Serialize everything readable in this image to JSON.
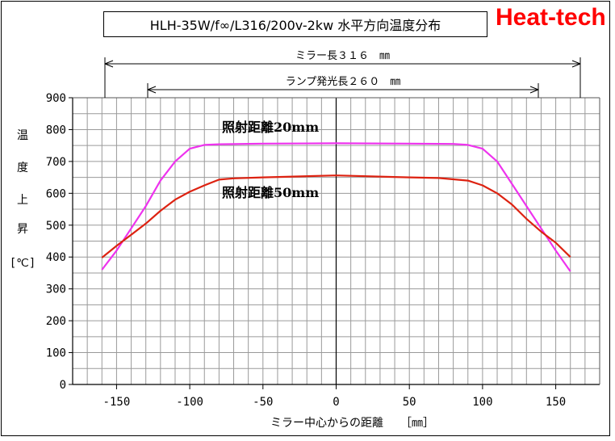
{
  "title": "HLH-35W/f∞/L316/200v-2kw 水平方向温度分布",
  "brand": "Heat-tech",
  "dimension_mirror": "ミラー長３１６　㎜",
  "dimension_lamp": "ランプ発光長２６０　㎜",
  "colors": {
    "series_20mm": "#ee33ee",
    "series_50mm": "#dd2211",
    "grid": "#9a9a9a"
  },
  "chart_data": {
    "type": "line",
    "xlabel": "ミラー中心からの距離　　［㎜］",
    "ylabel_chars": [
      "温",
      "度",
      "上",
      "昇",
      "[℃]"
    ],
    "xlim": [
      -180,
      180
    ],
    "ylim": [
      0,
      900
    ],
    "x_ticks": [
      "-150",
      "-100",
      "-50",
      "0",
      "50",
      "100",
      "150"
    ],
    "x_tick_values": [
      -150,
      -100,
      -50,
      0,
      50,
      100,
      150
    ],
    "y_ticks": [
      "0",
      "100",
      "200",
      "300",
      "400",
      "500",
      "600",
      "700",
      "800",
      "900"
    ],
    "y_tick_values": [
      0,
      100,
      200,
      300,
      400,
      500,
      600,
      700,
      800,
      900
    ],
    "grid": true,
    "series": [
      {
        "name": "照射距離20mm",
        "color": "#ee33ee",
        "points": [
          [
            -160,
            360
          ],
          [
            -150,
            420
          ],
          [
            -140,
            490
          ],
          [
            -130,
            560
          ],
          [
            -120,
            640
          ],
          [
            -110,
            700
          ],
          [
            -100,
            740
          ],
          [
            -90,
            752
          ],
          [
            -80,
            754
          ],
          [
            -50,
            756
          ],
          [
            0,
            757
          ],
          [
            50,
            756
          ],
          [
            80,
            755
          ],
          [
            90,
            752
          ],
          [
            100,
            740
          ],
          [
            110,
            700
          ],
          [
            120,
            630
          ],
          [
            130,
            560
          ],
          [
            140,
            490
          ],
          [
            150,
            420
          ],
          [
            160,
            355
          ]
        ]
      },
      {
        "name": "照射距離50mm",
        "color": "#dd2211",
        "points": [
          [
            -160,
            398
          ],
          [
            -150,
            435
          ],
          [
            -140,
            470
          ],
          [
            -130,
            505
          ],
          [
            -120,
            545
          ],
          [
            -110,
            580
          ],
          [
            -100,
            605
          ],
          [
            -90,
            625
          ],
          [
            -80,
            643
          ],
          [
            -70,
            647
          ],
          [
            -50,
            650
          ],
          [
            0,
            656
          ],
          [
            50,
            650
          ],
          [
            70,
            648
          ],
          [
            90,
            640
          ],
          [
            100,
            625
          ],
          [
            110,
            600
          ],
          [
            120,
            565
          ],
          [
            130,
            520
          ],
          [
            140,
            480
          ],
          [
            150,
            445
          ],
          [
            160,
            400
          ]
        ]
      }
    ]
  }
}
